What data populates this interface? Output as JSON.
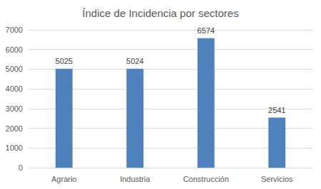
{
  "chart_data": {
    "type": "bar",
    "title": "Índice de Incidencia por sectores",
    "categories": [
      "Agrario",
      "Industria",
      "Construcción",
      "Servicios"
    ],
    "values": [
      5025,
      5024,
      6574,
      2541
    ],
    "color": "#4f81bd",
    "ylim": [
      0,
      7000
    ],
    "yticks": [
      0,
      1000,
      2000,
      3000,
      4000,
      5000,
      6000,
      7000
    ],
    "grid": true,
    "data_labels": true
  }
}
